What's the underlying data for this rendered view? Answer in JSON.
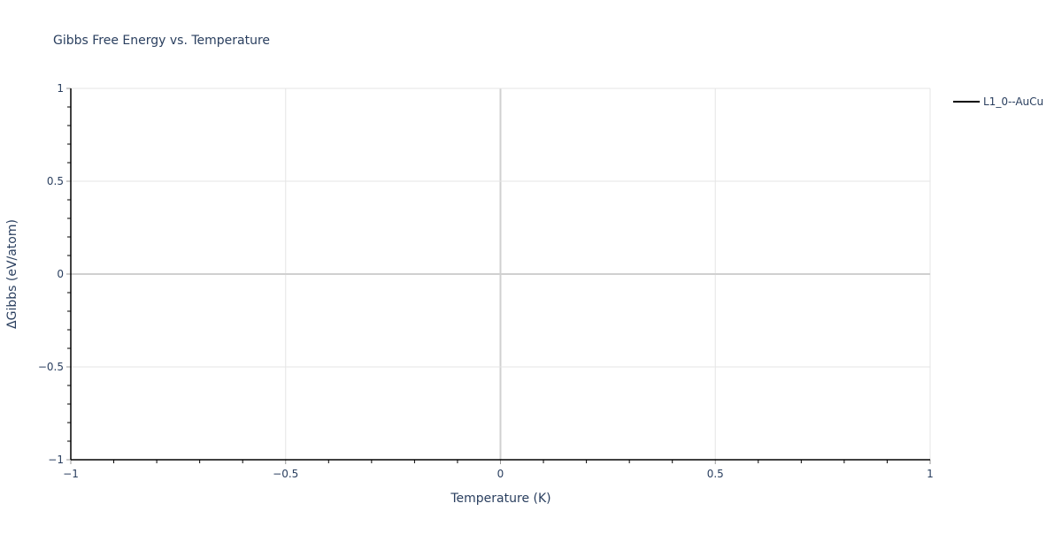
{
  "chart_data": {
    "type": "line",
    "title": "Gibbs Free Energy vs. Temperature",
    "xlabel": "Temperature (K)",
    "ylabel": "ΔGibbs (eV/atom)",
    "xlim": [
      -1,
      1
    ],
    "ylim": [
      -1,
      1
    ],
    "xticks": [
      -1,
      -0.5,
      0,
      0.5,
      1
    ],
    "yticks": [
      -1,
      -0.5,
      0,
      0.5,
      1
    ],
    "xtick_labels": [
      "−1",
      "−0.5",
      "0",
      "0.5",
      "1"
    ],
    "ytick_labels": [
      "−1",
      "−0.5",
      "0",
      "0.5",
      "1"
    ],
    "grid": true,
    "legend_position": "top-right-outside",
    "series": [
      {
        "name": "L1_0--AuCu",
        "color": "#000000",
        "x": [],
        "y": []
      }
    ]
  }
}
